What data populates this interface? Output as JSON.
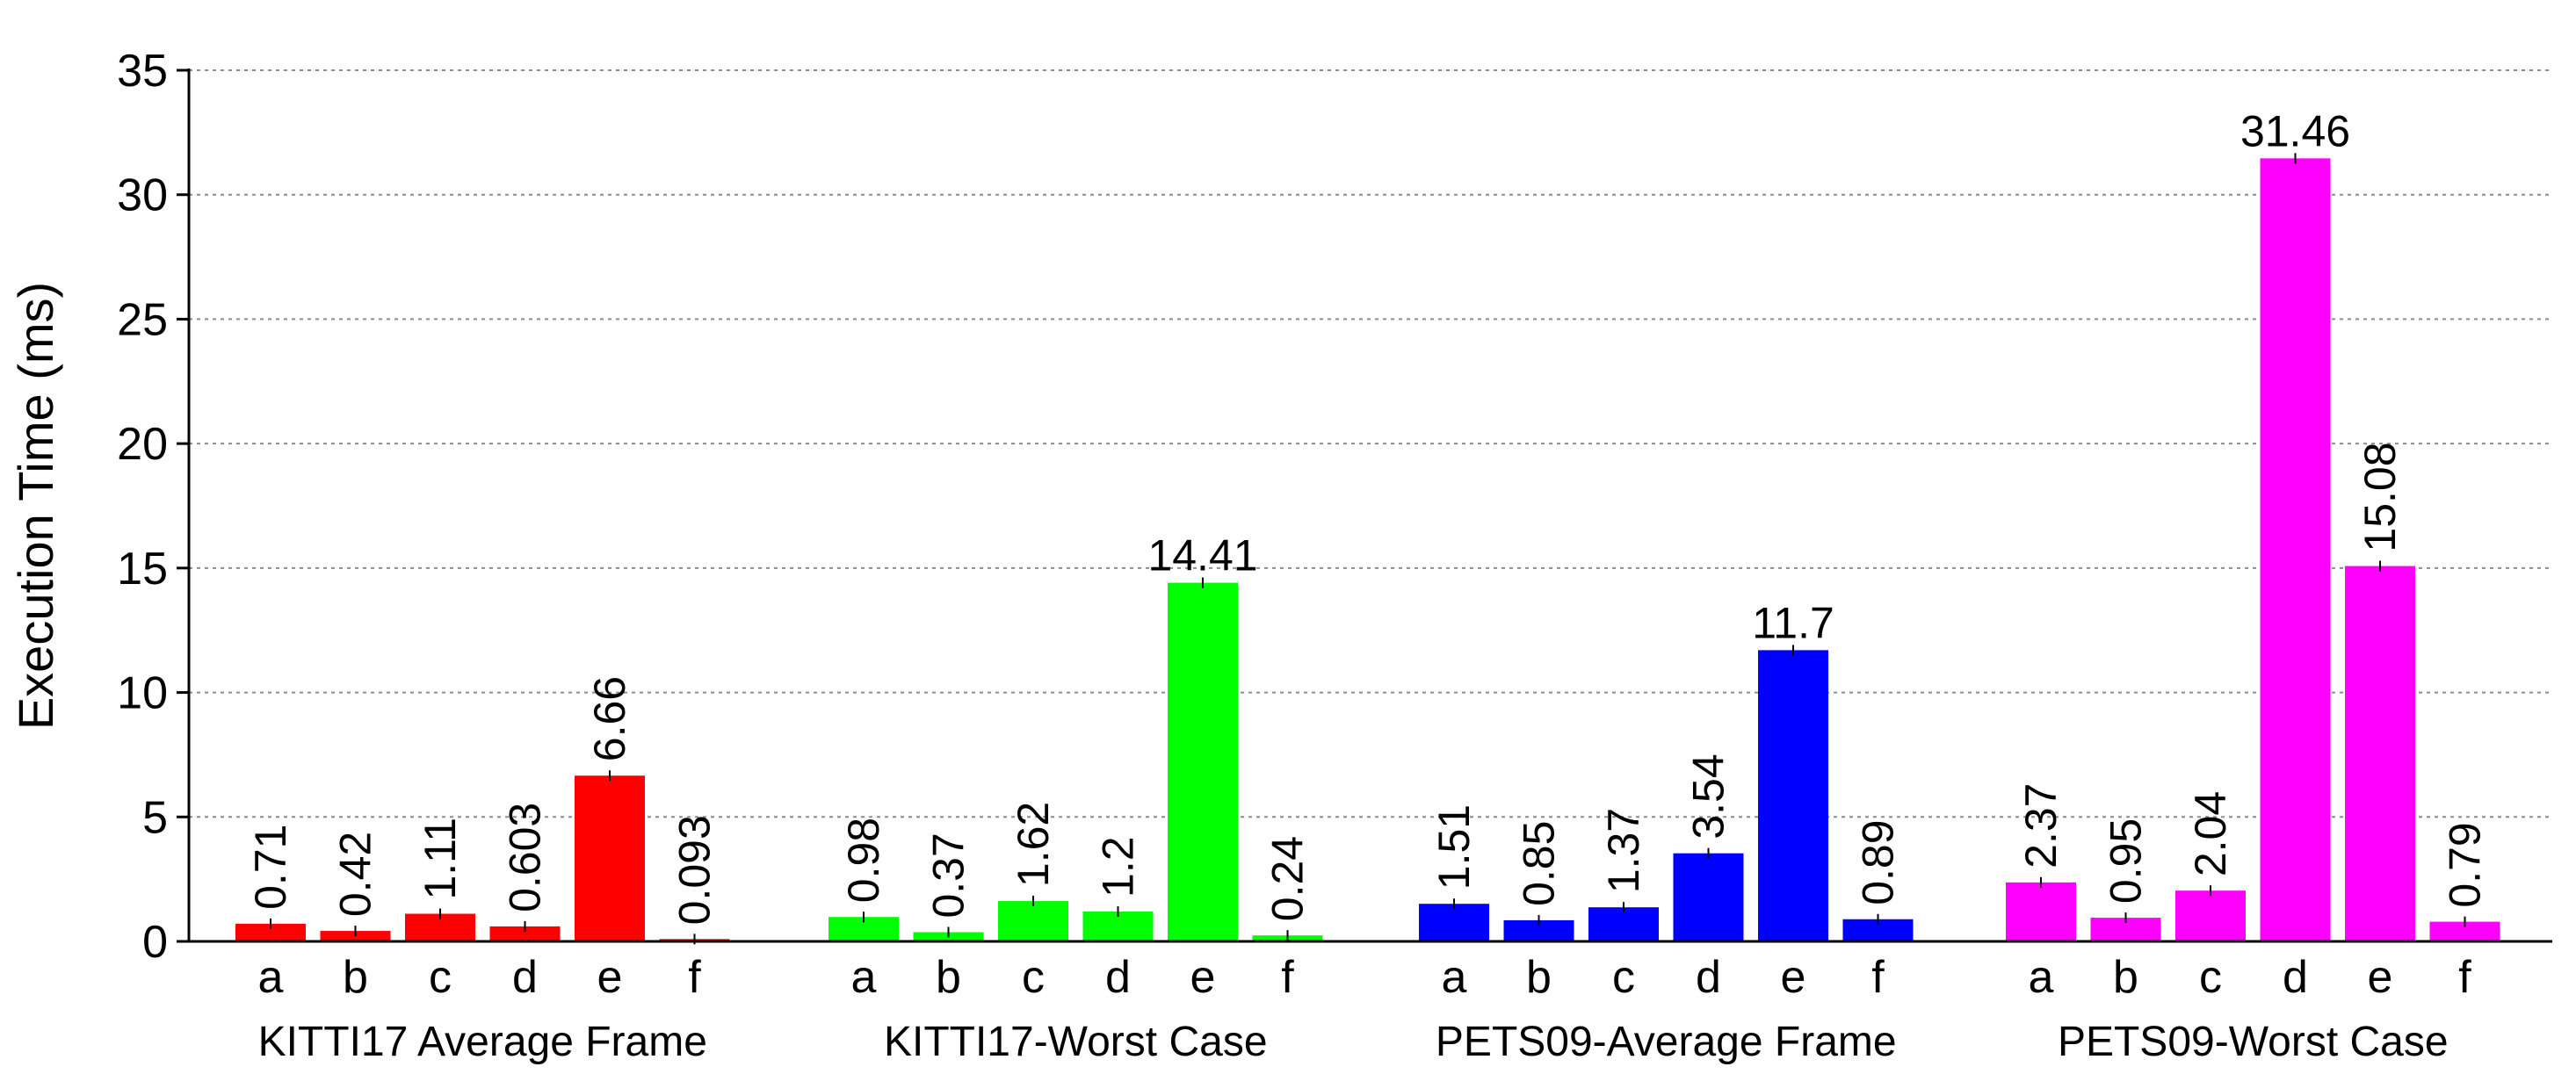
{
  "chart_data": {
    "type": "bar",
    "title": "",
    "ylabel": "Execution Time (ms)",
    "xlabel": "",
    "ylim": [
      0,
      35
    ],
    "yticks": [
      0,
      5,
      10,
      15,
      20,
      25,
      30,
      35
    ],
    "grid": true,
    "legend": "none",
    "categories": [
      "a",
      "b",
      "c",
      "d",
      "e",
      "f"
    ],
    "groups": [
      {
        "label": "KITTI17 Average Frame",
        "color": "#ff0000",
        "values": [
          0.71,
          0.42,
          1.11,
          0.603,
          6.66,
          0.093
        ],
        "value_labels": [
          "0.71",
          "0.42",
          "1.11",
          "0.603",
          "6.66",
          "0.093"
        ],
        "label_orientation": [
          "vertical",
          "vertical",
          "vertical",
          "vertical",
          "vertical",
          "vertical"
        ]
      },
      {
        "label": "KITTI17-Worst Case",
        "color": "#00ff00",
        "values": [
          0.98,
          0.37,
          1.62,
          1.2,
          14.41,
          0.24
        ],
        "value_labels": [
          "0.98",
          "0.37",
          "1.62",
          "1.2",
          "14.41",
          "0.24"
        ],
        "label_orientation": [
          "vertical",
          "vertical",
          "vertical",
          "vertical",
          "horizontal",
          "vertical"
        ]
      },
      {
        "label": "PETS09-Average Frame",
        "color": "#0000ff",
        "values": [
          1.51,
          0.85,
          1.37,
          3.54,
          11.7,
          0.89
        ],
        "value_labels": [
          "1.51",
          "0.85",
          "1.37",
          "3.54",
          "11.7",
          "0.89"
        ],
        "label_orientation": [
          "vertical",
          "vertical",
          "vertical",
          "vertical",
          "horizontal",
          "vertical"
        ]
      },
      {
        "label": "PETS09-Worst Case",
        "color": "#ff00ff",
        "values": [
          2.37,
          0.95,
          2.04,
          31.46,
          15.08,
          0.79
        ],
        "value_labels": [
          "2.37",
          "0.95",
          "2.04",
          "31.46",
          "15.08",
          "0.79"
        ],
        "label_orientation": [
          "vertical",
          "vertical",
          "vertical",
          "horizontal",
          "vertical",
          "vertical"
        ]
      }
    ]
  }
}
